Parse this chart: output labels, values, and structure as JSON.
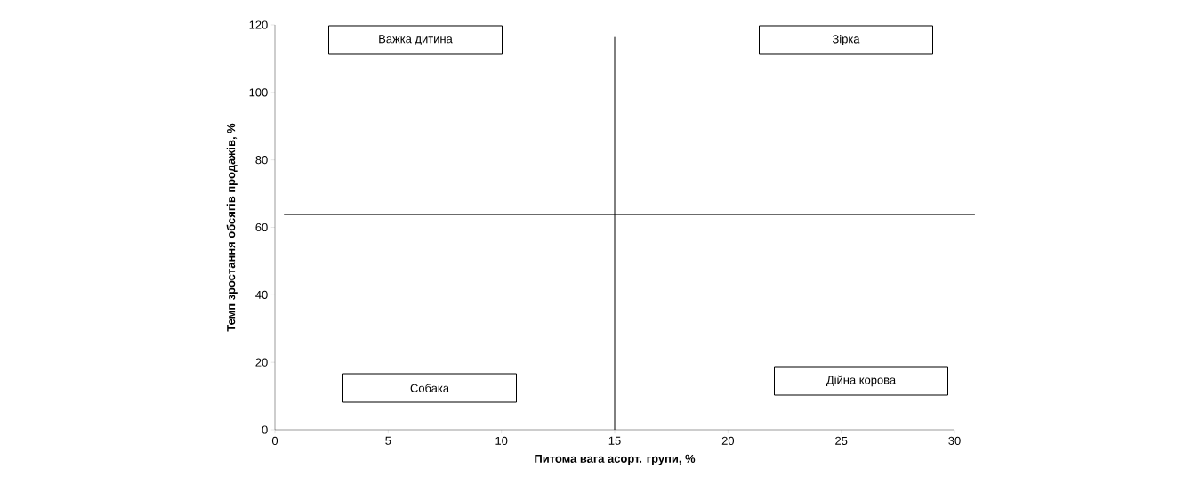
{
  "chart_data": {
    "type": "scatter",
    "xlabel": "Питома вага асорт. групи, %",
    "ylabel": "Темп зростання обсягів продажів, %",
    "xlim": [
      0,
      30
    ],
    "ylim": [
      0,
      120
    ],
    "xticks": [
      0,
      5,
      10,
      15,
      20,
      25,
      30
    ],
    "yticks": [
      0,
      20,
      40,
      60,
      80,
      100,
      120
    ],
    "ref_lines": [
      {
        "axis": "x",
        "value": 15,
        "color": "#000000"
      },
      {
        "axis": "y",
        "value": 63.8,
        "color": "#000000"
      }
    ],
    "annotations": [
      "Важка дитина",
      "Зірка",
      "Собака",
      "Дійна корова"
    ]
  }
}
